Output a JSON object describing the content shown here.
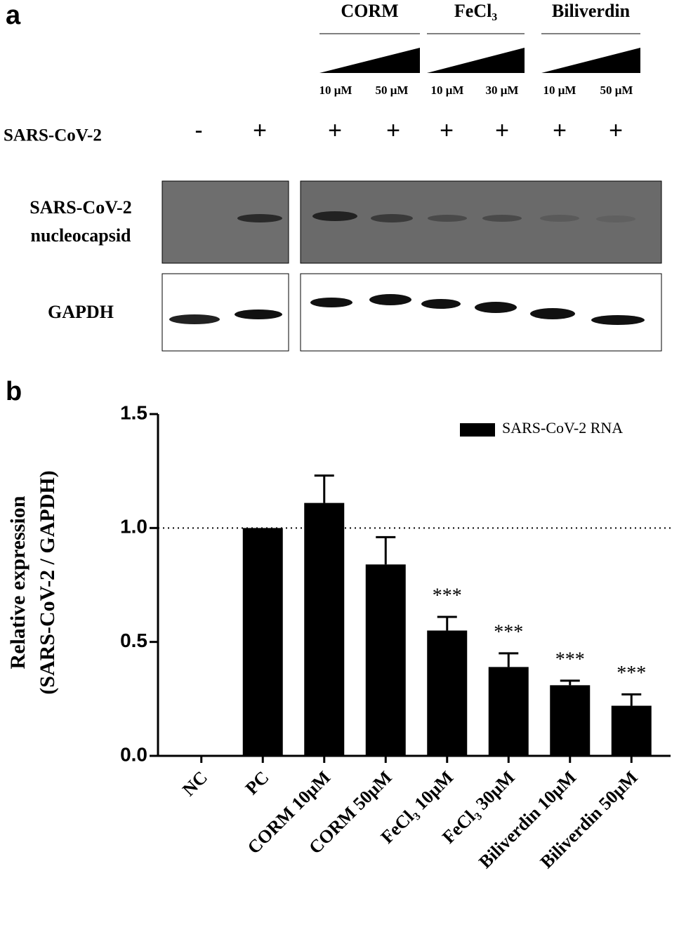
{
  "panel_a": {
    "label": "a",
    "groups": [
      {
        "name": "CORM",
        "doses": [
          "10 μM",
          "50 μM"
        ]
      },
      {
        "name": "FeCl₃",
        "doses": [
          "10 μM",
          "30 μM"
        ]
      },
      {
        "name": "Biliverdin",
        "doses": [
          "10 μM",
          "50 μM"
        ]
      }
    ],
    "infection": {
      "label": "SARS-CoV-2",
      "signs": [
        "-",
        "+",
        "+",
        "+",
        "+",
        "+",
        "+",
        "+"
      ]
    },
    "blots": [
      {
        "label": [
          "SARS-CoV-2",
          "nucleocapsid"
        ]
      },
      {
        "label": [
          "GAPDH"
        ]
      }
    ]
  },
  "chart_data": {
    "type": "bar",
    "panel_label": "b",
    "ylabel": [
      "Relative expression",
      "(SARS-CoV-2 / GAPDH)"
    ],
    "categories": [
      "NC",
      "PC",
      "CORM 10μM",
      "CORM 50μM",
      "FeCl₃ 10μM",
      "FeCl₃ 30μM",
      "Biliverdin 10μM",
      "Biliverdin 50μM"
    ],
    "series": [
      {
        "name": "SARS-CoV-2 RNA",
        "color": "#000000",
        "values": [
          0,
          1,
          1.11,
          0.84,
          0.55,
          0.39,
          0.31,
          0.22
        ],
        "errors": [
          null,
          null,
          0.12,
          0.12,
          0.06,
          0.06,
          0.02,
          0.05
        ]
      }
    ],
    "annotations": [
      null,
      null,
      null,
      null,
      "***",
      "***",
      "***",
      "***"
    ],
    "reference_line": 1,
    "ylim": [
      0,
      1.5
    ],
    "yticks": [
      {
        "value": 0,
        "label": "0.0"
      },
      0.5,
      {
        "value": 1,
        "label": "1.0"
      },
      1.5
    ],
    "legend": "top-right"
  }
}
